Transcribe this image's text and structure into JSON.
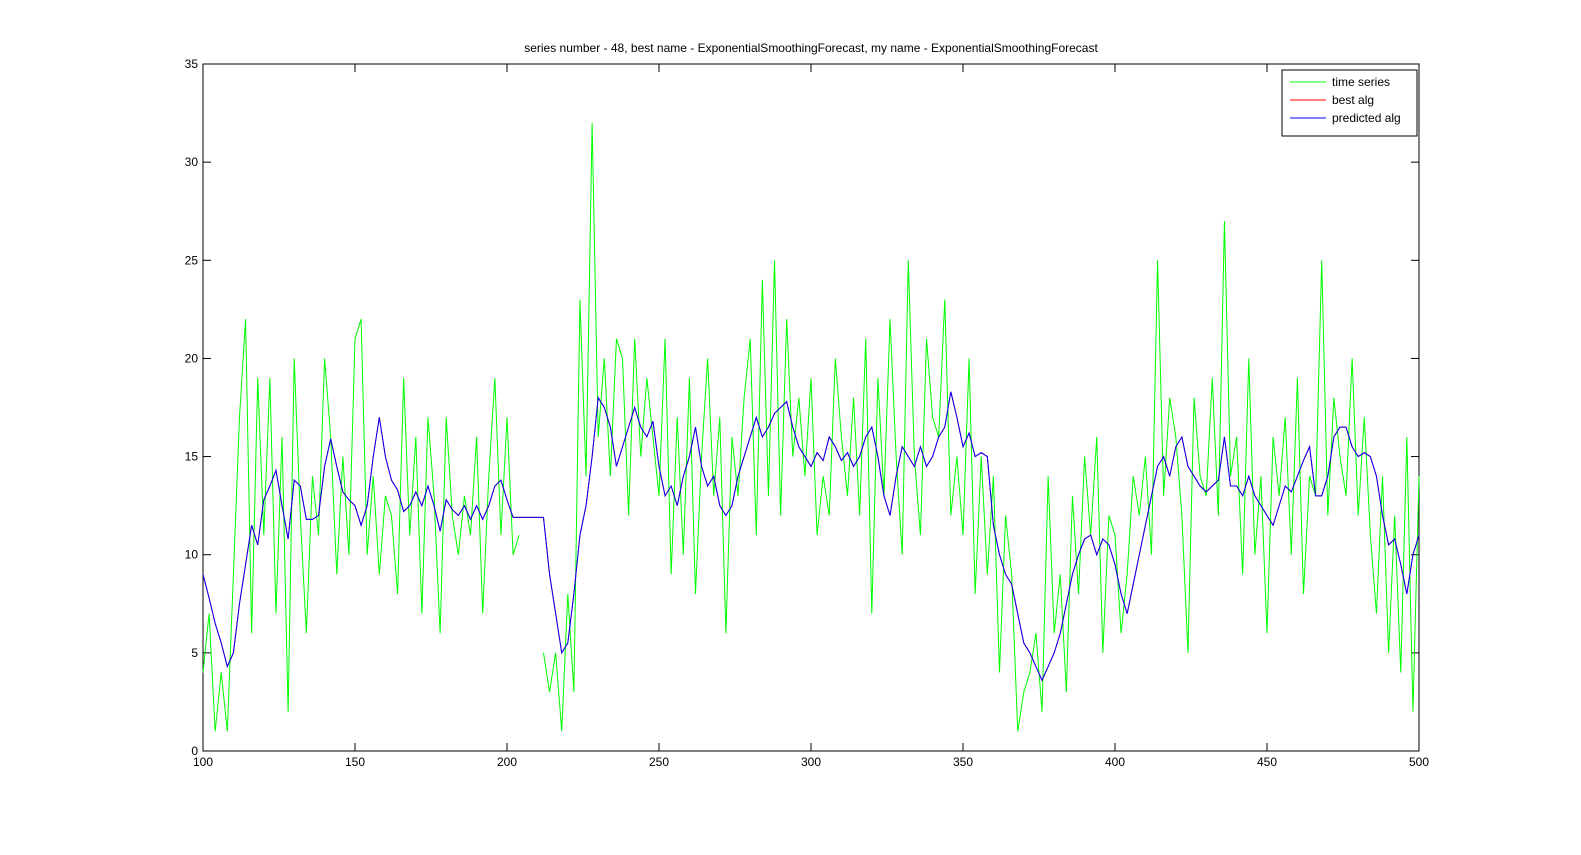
{
  "chart_data": {
    "type": "line",
    "title": "series number - 48, best name - ExponentialSmoothingForecast, my name - ExponentialSmoothingForecast",
    "x": [
      100,
      102,
      104,
      106,
      108,
      110,
      112,
      114,
      116,
      118,
      120,
      122,
      124,
      126,
      128,
      130,
      132,
      134,
      136,
      138,
      140,
      142,
      144,
      146,
      148,
      150,
      152,
      154,
      156,
      158,
      160,
      162,
      164,
      166,
      168,
      170,
      172,
      174,
      176,
      178,
      180,
      182,
      184,
      186,
      188,
      190,
      192,
      194,
      196,
      198,
      200,
      202,
      204,
      206,
      208,
      210,
      212,
      214,
      216,
      218,
      220,
      222,
      224,
      226,
      228,
      230,
      232,
      234,
      236,
      238,
      240,
      242,
      244,
      246,
      248,
      250,
      252,
      254,
      256,
      258,
      260,
      262,
      264,
      266,
      268,
      270,
      272,
      274,
      276,
      278,
      280,
      282,
      284,
      286,
      288,
      290,
      292,
      294,
      296,
      298,
      300,
      302,
      304,
      306,
      308,
      310,
      312,
      314,
      316,
      318,
      320,
      322,
      324,
      326,
      328,
      330,
      332,
      334,
      336,
      338,
      340,
      342,
      344,
      346,
      348,
      350,
      352,
      354,
      356,
      358,
      360,
      362,
      364,
      366,
      368,
      370,
      372,
      374,
      376,
      378,
      380,
      382,
      384,
      386,
      388,
      390,
      392,
      394,
      396,
      398,
      400,
      402,
      404,
      406,
      408,
      410,
      412,
      414,
      416,
      418,
      420,
      422,
      424,
      426,
      428,
      430,
      432,
      434,
      436,
      438,
      440,
      442,
      444,
      446,
      448,
      450,
      452,
      454,
      456,
      458,
      460,
      462,
      464,
      466,
      468,
      470,
      472,
      474,
      476,
      478,
      480,
      482,
      484,
      486,
      488,
      490,
      492,
      494,
      496,
      498,
      500
    ],
    "series": [
      {
        "name": "time series",
        "color": "#00ff00",
        "values": [
          4,
          7,
          1,
          4,
          1,
          9,
          17,
          22,
          6,
          19,
          11,
          19,
          7,
          16,
          2,
          20,
          12,
          6,
          14,
          11,
          20,
          16,
          9,
          15,
          10,
          21,
          22,
          10,
          14,
          9,
          13,
          12,
          8,
          19,
          11,
          16,
          7,
          17,
          13,
          6,
          17,
          12,
          10,
          13,
          11,
          16,
          7,
          14,
          19,
          11,
          17,
          10,
          11,
          null,
          null,
          null,
          5,
          3,
          5,
          1,
          8,
          3,
          23,
          14,
          32,
          16,
          20,
          14,
          21,
          20,
          12,
          21,
          15,
          19,
          16,
          13,
          21,
          9,
          17,
          10,
          19,
          8,
          15,
          20,
          13,
          17,
          6,
          16,
          13,
          18,
          21,
          11,
          24,
          13,
          25,
          12,
          22,
          15,
          18,
          14,
          19,
          11,
          14,
          12,
          20,
          16,
          13,
          18,
          12,
          21,
          7,
          19,
          13,
          22,
          15,
          10,
          25,
          15,
          11,
          21,
          17,
          16,
          23,
          12,
          15,
          11,
          20,
          8,
          15,
          9,
          14,
          4,
          12,
          9,
          1,
          3,
          4,
          6,
          2,
          14,
          6,
          9,
          3,
          13,
          8,
          15,
          11,
          16,
          5,
          12,
          11,
          6,
          9,
          14,
          12,
          15,
          10,
          25,
          13,
          18,
          16,
          12,
          5,
          18,
          14,
          13,
          19,
          12,
          27,
          14,
          16,
          9,
          20,
          10,
          14,
          6,
          16,
          13,
          17,
          10,
          19,
          8,
          14,
          13,
          25,
          12,
          18,
          15,
          13,
          20,
          12,
          17,
          11,
          7,
          14,
          5,
          12,
          4,
          16,
          2,
          14
        ]
      },
      {
        "name": "best alg",
        "color": "#ff0000",
        "values": [
          9,
          7.8,
          6.5,
          5.5,
          4.3,
          5,
          7.5,
          9.5,
          11.5,
          10.5,
          12.8,
          13.5,
          14.3,
          12.5,
          10.8,
          13.8,
          13.5,
          11.8,
          11.8,
          12,
          14.5,
          15.9,
          14.5,
          13.2,
          12.8,
          12.5,
          11.5,
          12.5,
          15,
          17,
          15,
          13.8,
          13.3,
          12.2,
          12.5,
          13.2,
          12.5,
          13.5,
          12.5,
          11.2,
          12.8,
          12.3,
          12,
          12.5,
          11.8,
          12.5,
          11.8,
          12.5,
          13.5,
          13.8,
          12.8,
          11.9,
          11.9,
          11.9,
          11.9,
          11.9,
          11.9,
          9,
          7,
          5,
          5.5,
          8,
          11,
          12.5,
          15,
          18,
          17.5,
          16.5,
          14.5,
          15.5,
          16.5,
          17.5,
          16.5,
          16,
          16.8,
          14.5,
          13,
          13.5,
          12.5,
          14,
          15,
          16.5,
          14.5,
          13.5,
          14,
          12.5,
          12,
          12.5,
          14,
          15,
          16,
          17,
          16,
          16.5,
          17.2,
          17.5,
          17.8,
          16.5,
          15.5,
          15,
          14.5,
          15.2,
          14.8,
          16,
          15.5,
          14.8,
          15.2,
          14.5,
          15,
          16,
          16.5,
          15,
          13,
          12,
          14,
          15.5,
          15,
          14.5,
          15.5,
          14.5,
          15,
          16,
          16.5,
          18.3,
          17,
          15.5,
          16.2,
          15,
          15.2,
          15,
          11.5,
          10,
          9,
          8.5,
          7,
          5.5,
          5,
          4.3,
          3.6,
          4.3,
          5,
          6,
          7.5,
          9,
          10,
          10.8,
          11,
          10,
          10.8,
          10.5,
          9.5,
          8,
          7,
          8.5,
          10,
          11.5,
          13,
          14.5,
          15,
          14,
          15.5,
          16,
          14.5,
          14,
          13.5,
          13.2,
          13.5,
          13.8,
          16,
          13.5,
          13.5,
          13,
          14,
          13,
          12.5,
          12,
          11.5,
          12.5,
          13.5,
          13.2,
          14,
          14.8,
          15.5,
          13,
          13,
          14,
          16,
          16.5,
          16.5,
          15.5,
          15,
          15.2,
          15,
          14,
          12,
          10.5,
          10.8,
          9.5,
          8,
          10,
          11
        ]
      },
      {
        "name": "predicted alg",
        "color": "#0000ff",
        "values": [
          9,
          7.8,
          6.5,
          5.5,
          4.3,
          5,
          7.5,
          9.5,
          11.5,
          10.5,
          12.8,
          13.5,
          14.3,
          12.5,
          10.8,
          13.8,
          13.5,
          11.8,
          11.8,
          12,
          14.5,
          15.9,
          14.5,
          13.2,
          12.8,
          12.5,
          11.5,
          12.5,
          15,
          17,
          15,
          13.8,
          13.3,
          12.2,
          12.5,
          13.2,
          12.5,
          13.5,
          12.5,
          11.2,
          12.8,
          12.3,
          12,
          12.5,
          11.8,
          12.5,
          11.8,
          12.5,
          13.5,
          13.8,
          12.8,
          11.9,
          11.9,
          11.9,
          11.9,
          11.9,
          11.9,
          9,
          7,
          5,
          5.5,
          8,
          11,
          12.5,
          15,
          18,
          17.5,
          16.5,
          14.5,
          15.5,
          16.5,
          17.5,
          16.5,
          16,
          16.8,
          14.5,
          13,
          13.5,
          12.5,
          14,
          15,
          16.5,
          14.5,
          13.5,
          14,
          12.5,
          12,
          12.5,
          14,
          15,
          16,
          17,
          16,
          16.5,
          17.2,
          17.5,
          17.8,
          16.5,
          15.5,
          15,
          14.5,
          15.2,
          14.8,
          16,
          15.5,
          14.8,
          15.2,
          14.5,
          15,
          16,
          16.5,
          15,
          13,
          12,
          14,
          15.5,
          15,
          14.5,
          15.5,
          14.5,
          15,
          16,
          16.5,
          18.3,
          17,
          15.5,
          16.2,
          15,
          15.2,
          15,
          11.5,
          10,
          9,
          8.5,
          7,
          5.5,
          5,
          4.3,
          3.6,
          4.3,
          5,
          6,
          7.5,
          9,
          10,
          10.8,
          11,
          10,
          10.8,
          10.5,
          9.5,
          8,
          7,
          8.5,
          10,
          11.5,
          13,
          14.5,
          15,
          14,
          15.5,
          16,
          14.5,
          14,
          13.5,
          13.2,
          13.5,
          13.8,
          16,
          13.5,
          13.5,
          13,
          14,
          13,
          12.5,
          12,
          11.5,
          12.5,
          13.5,
          13.2,
          14,
          14.8,
          15.5,
          13,
          13,
          14,
          16,
          16.5,
          16.5,
          15.5,
          15,
          15.2,
          15,
          14,
          12,
          10.5,
          10.8,
          9.5,
          8,
          10,
          11
        ]
      }
    ],
    "xlim": [
      100,
      500
    ],
    "xticks": [
      100,
      150,
      200,
      250,
      300,
      350,
      400,
      450,
      500
    ],
    "ylim": [
      0,
      35
    ],
    "yticks": [
      0,
      5,
      10,
      15,
      20,
      25,
      30,
      35
    ],
    "grid": false,
    "legend": "northeast"
  }
}
